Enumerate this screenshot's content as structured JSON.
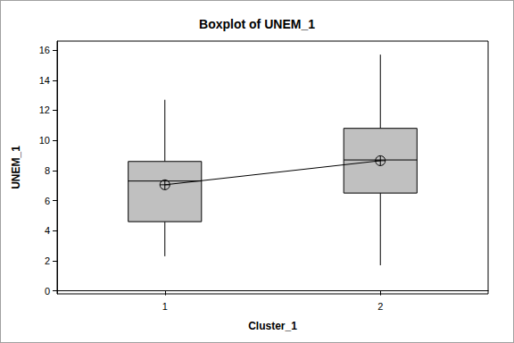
{
  "chart_data": {
    "type": "boxplot",
    "title": "Boxplot of UNEM_1",
    "x_label": "Cluster_1",
    "y_label": "UNEM_1",
    "categories": [
      "1",
      "2"
    ],
    "boxes": [
      {
        "min": 2.3,
        "q1": 4.6,
        "median": 7.3,
        "q3": 8.6,
        "max": 12.7
      },
      {
        "min": 1.7,
        "q1": 6.5,
        "median": 8.7,
        "q3": 10.8,
        "max": 15.7
      }
    ],
    "means": [
      7.05,
      8.65
    ],
    "color": "#c0c0c0",
    "marker": "circle-cross",
    "ylim": [
      -0.2,
      16.6
    ],
    "yticks": [
      0,
      2,
      4,
      6,
      8,
      10,
      12,
      14,
      16
    ],
    "grid": false
  }
}
